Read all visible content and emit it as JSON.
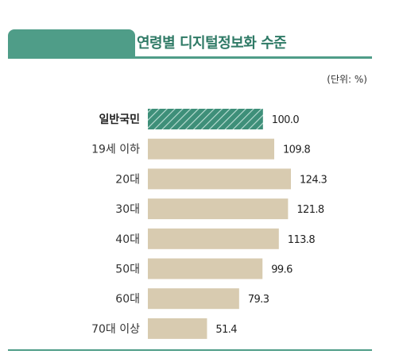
{
  "title": "연령별 디지털정보화 수준",
  "unit_label": "(단위: %)",
  "colors": {
    "accent": "#4f9d88",
    "highlight_bar": "#3e8f79",
    "bar": "#d8cbb0",
    "title_text": "#2f7a66"
  },
  "chart_data": {
    "type": "bar",
    "orientation": "horizontal",
    "categories": [
      "일반국민",
      "19세 이하",
      "20대",
      "30대",
      "40대",
      "50대",
      "60대",
      "70대 이상"
    ],
    "values": [
      100.0,
      109.8,
      124.3,
      121.8,
      113.8,
      99.6,
      79.3,
      51.4
    ],
    "value_labels": [
      "100.0",
      "109.8",
      "124.3",
      "121.8",
      "113.8",
      "99.6",
      "79.3",
      "51.4"
    ],
    "highlight_index": 0,
    "xlim": [
      0,
      124.3
    ],
    "grid": false
  }
}
